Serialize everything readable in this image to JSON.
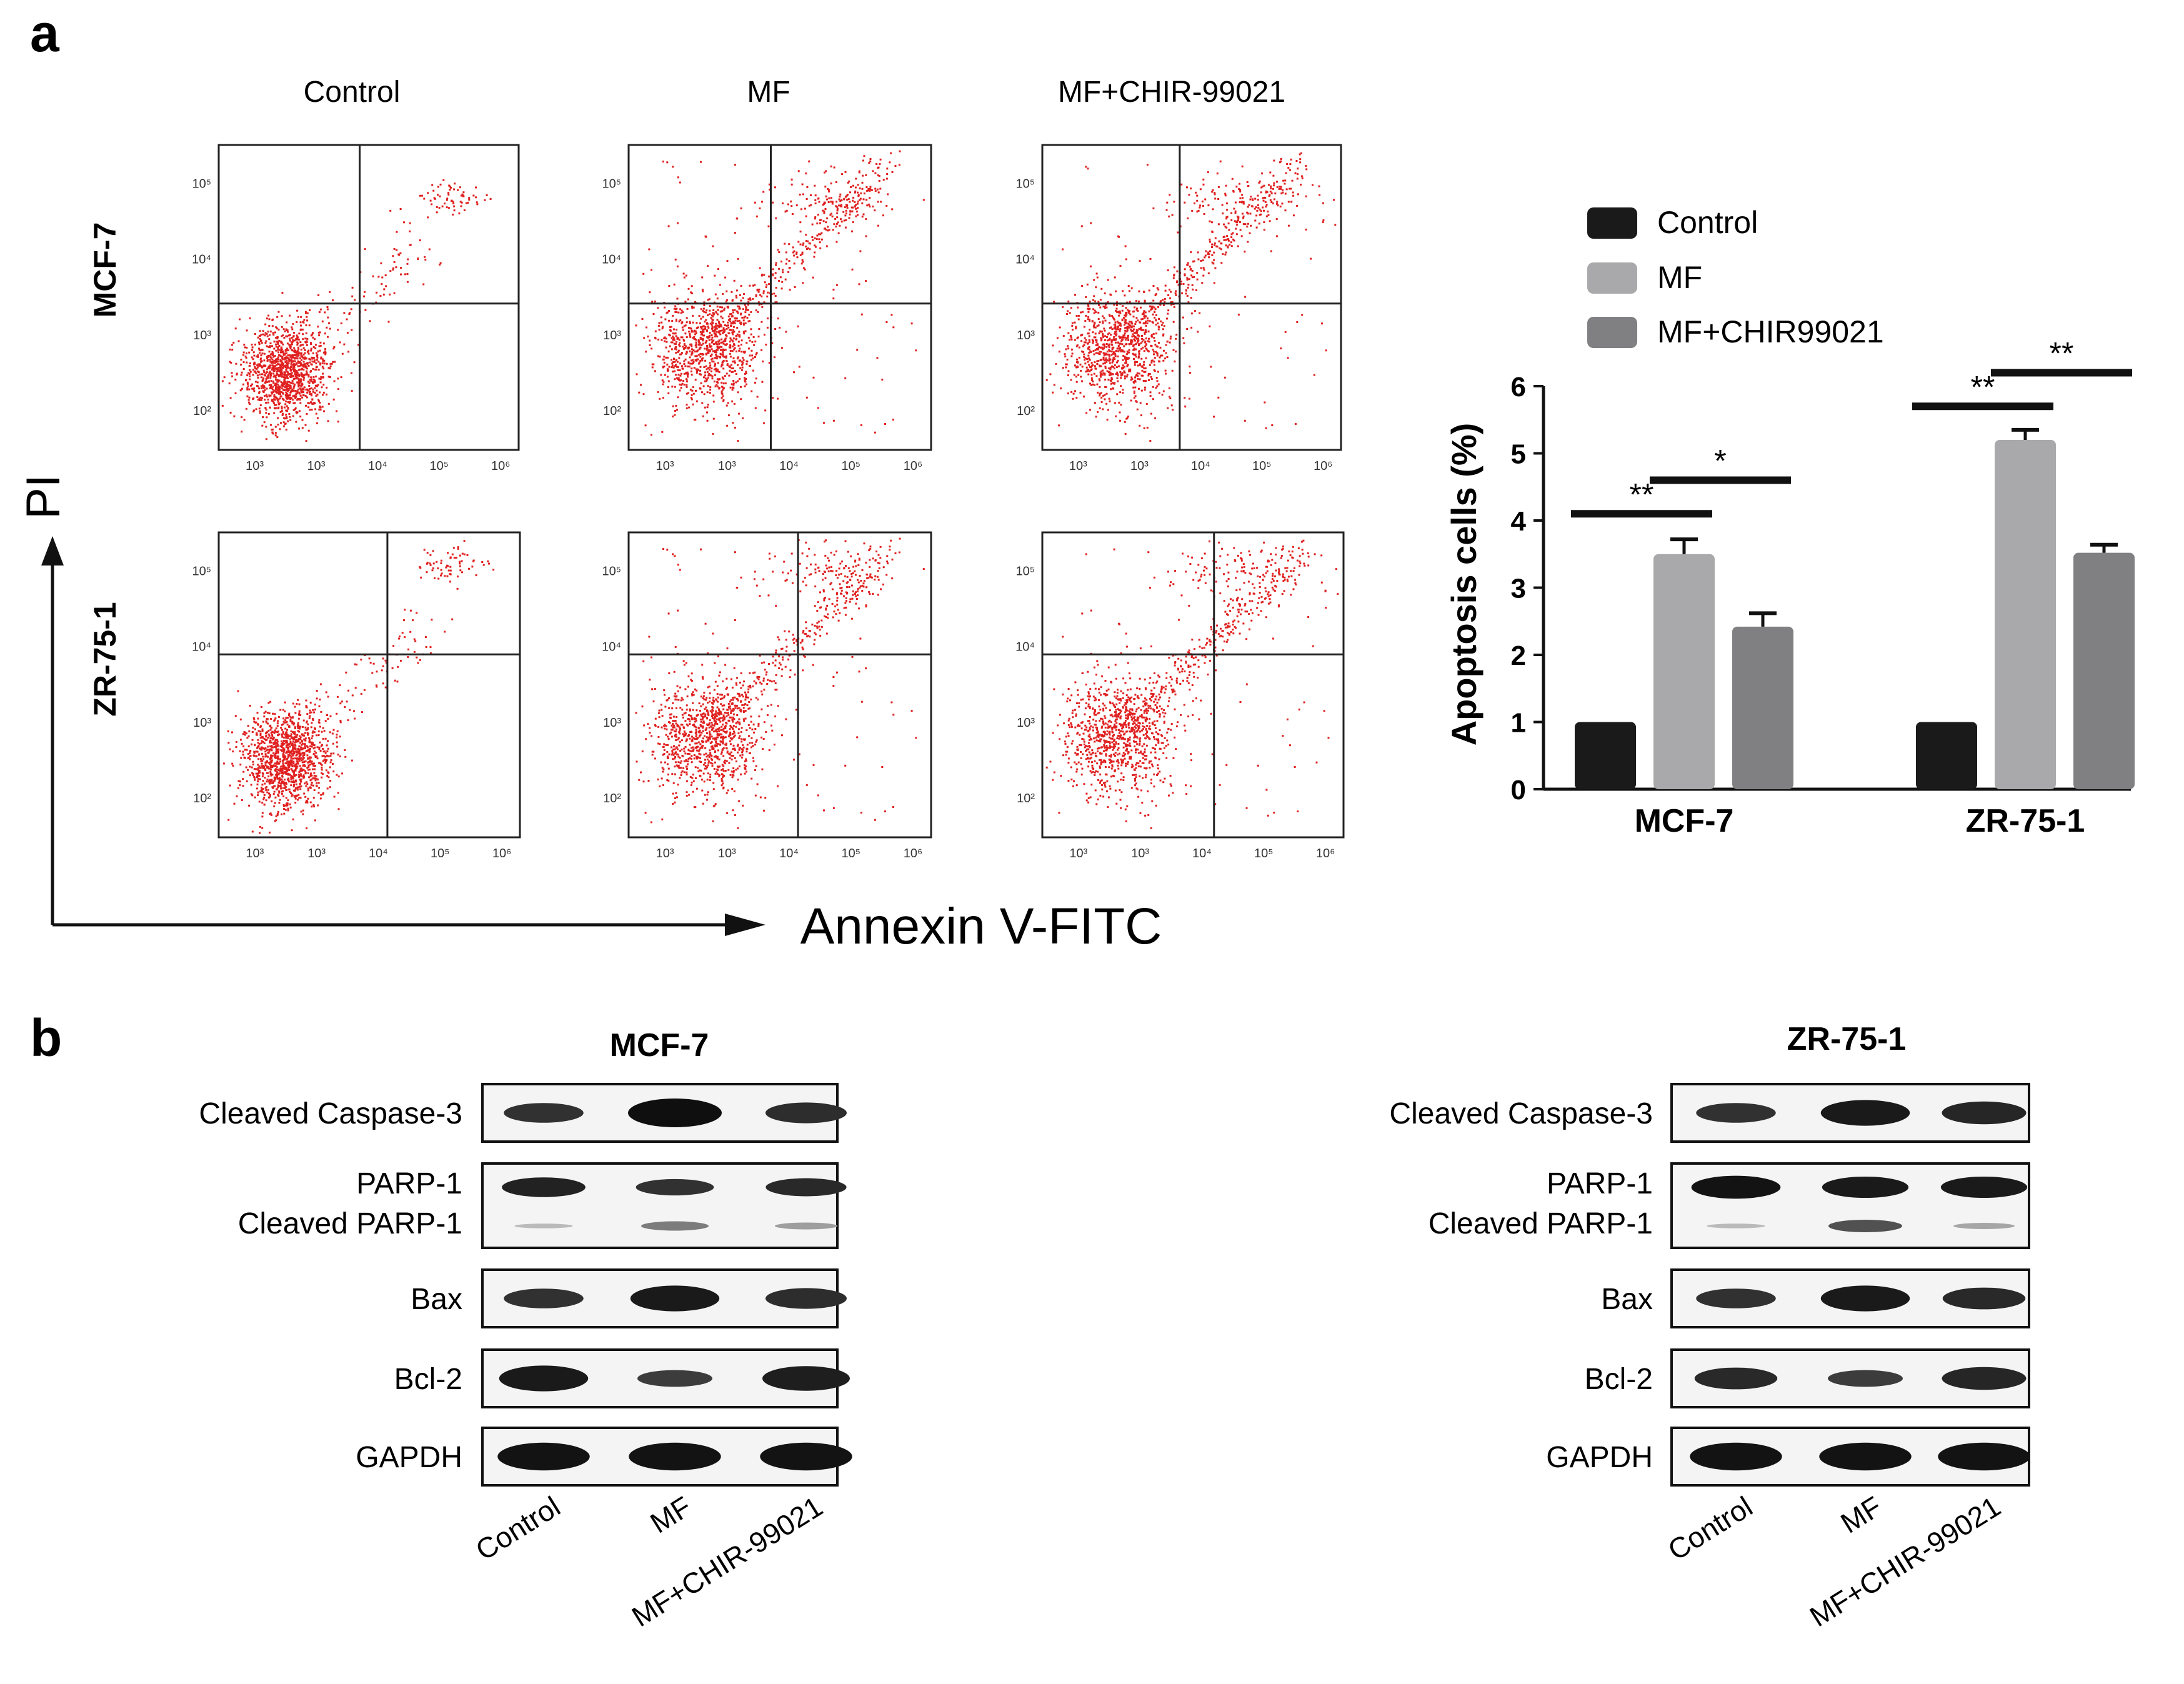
{
  "panel_a": {
    "label": "a",
    "flow": {
      "columns": [
        "Control",
        "MF",
        "MF+CHIR-99021"
      ],
      "rows": [
        "MCF-7",
        "ZR-75-1"
      ],
      "y_axis_label": "PI",
      "x_axis_label": "Annexin V-FITC",
      "x_ticks": [
        "10³",
        "10³",
        "10⁴",
        "10⁵",
        "10⁶"
      ],
      "y_ticks": [
        "10⁵",
        "10⁴",
        "10³",
        "10²"
      ],
      "dot_color": "#e02020"
    }
  },
  "chart_data": {
    "type": "bar",
    "categories": [
      "MCF-7",
      "ZR-75-1"
    ],
    "series": [
      {
        "name": "Control",
        "values": [
          1.0,
          1.0
        ],
        "errors": [
          0.0,
          0.0
        ],
        "color": "#1a1a1a"
      },
      {
        "name": "MF",
        "values": [
          3.5,
          5.2
        ],
        "errors": [
          0.22,
          0.15
        ],
        "color": "#a9a9ab"
      },
      {
        "name": "MF+CHIR99021",
        "values": [
          2.42,
          3.52
        ],
        "errors": [
          0.2,
          0.12
        ],
        "color": "#808082"
      }
    ],
    "title": "",
    "xlabel": "",
    "ylabel": "Apoptosis cells (%)",
    "ylim": [
      0,
      6
    ],
    "yticks": [
      0,
      1,
      2,
      3,
      4,
      5,
      6
    ],
    "significance": [
      {
        "group": "MCF-7",
        "from": "Control",
        "to": "MF",
        "label": "**"
      },
      {
        "group": "MCF-7",
        "from": "MF",
        "to": "MF+CHIR99021",
        "label": "*"
      },
      {
        "group": "ZR-75-1",
        "from": "Control",
        "to": "MF",
        "label": "**"
      },
      {
        "group": "ZR-75-1",
        "from": "MF",
        "to": "MF+CHIR99021",
        "label": "**"
      }
    ],
    "legend_position": "top-right"
  },
  "panel_b": {
    "label": "b",
    "blots": [
      {
        "title": "MCF-7",
        "lane_labels": [
          "Control",
          "MF",
          "MF+CHIR-99021"
        ],
        "rows": [
          {
            "labels": [
              "Cleaved Caspase-3"
            ],
            "intensity": [
              0.55,
              1.0,
              0.6
            ]
          },
          {
            "labels": [
              "PARP-1",
              "Cleaved PARP-1"
            ],
            "intensity": [
              0.75,
              0.55,
              0.65
            ],
            "cleaved_intensity": [
              0.08,
              0.45,
              0.25
            ]
          },
          {
            "labels": [
              "Bax"
            ],
            "intensity": [
              0.55,
              0.85,
              0.6
            ]
          },
          {
            "labels": [
              "Bcl-2"
            ],
            "intensity": [
              0.85,
              0.4,
              0.8
            ]
          },
          {
            "labels": [
              "GAPDH"
            ],
            "intensity": [
              0.95,
              0.95,
              0.95
            ]
          }
        ]
      },
      {
        "title": "ZR-75-1",
        "lane_labels": [
          "Control",
          "MF",
          "MF+CHIR-99021"
        ],
        "rows": [
          {
            "labels": [
              "Cleaved Caspase-3"
            ],
            "intensity": [
              0.55,
              0.85,
              0.7
            ]
          },
          {
            "labels": [
              "PARP-1",
              "Cleaved PARP-1"
            ],
            "intensity": [
              0.95,
              0.85,
              0.85
            ],
            "cleaved_intensity": [
              0.08,
              0.7,
              0.2
            ]
          },
          {
            "labels": [
              "Bax"
            ],
            "intensity": [
              0.55,
              0.85,
              0.65
            ]
          },
          {
            "labels": [
              "Bcl-2"
            ],
            "intensity": [
              0.65,
              0.4,
              0.7
            ]
          },
          {
            "labels": [
              "GAPDH"
            ],
            "intensity": [
              0.95,
              0.95,
              0.95
            ]
          }
        ]
      }
    ]
  }
}
